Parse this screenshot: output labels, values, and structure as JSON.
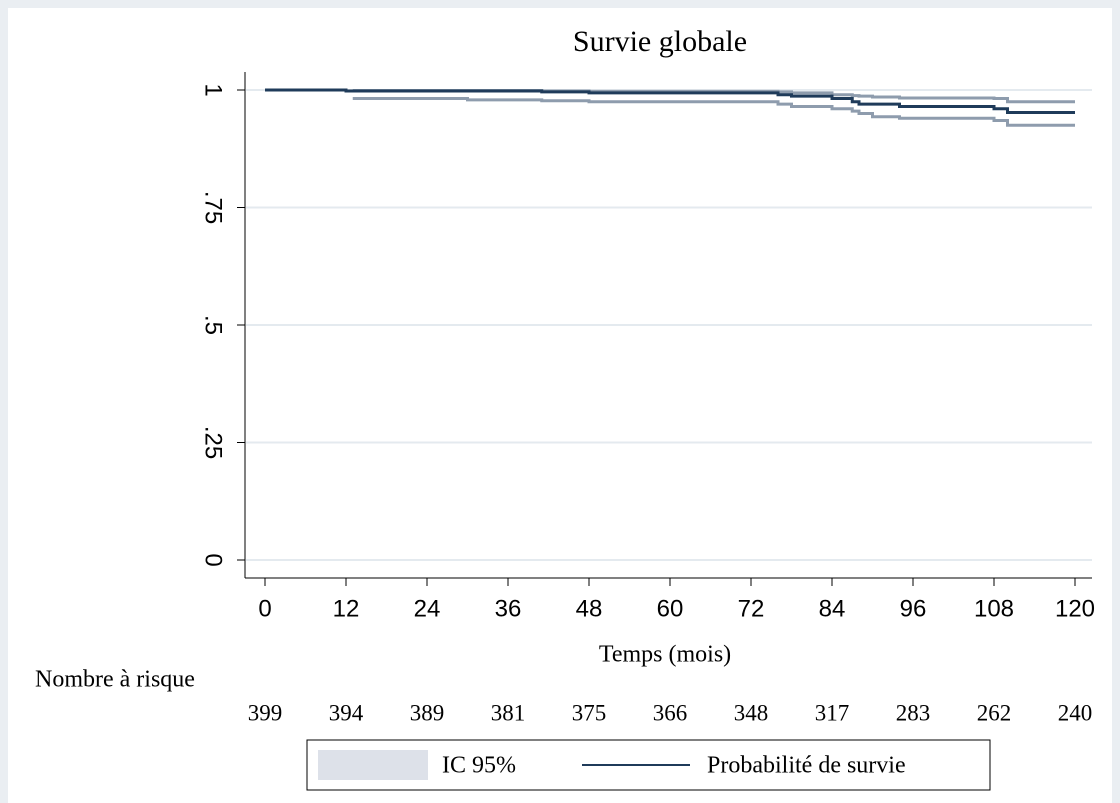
{
  "chart_data": {
    "type": "survival",
    "title": "Survie globale",
    "x_label": "Temps (mois)",
    "x": [
      0,
      12,
      13,
      30,
      41,
      48,
      76,
      78,
      84,
      87,
      88,
      90,
      94,
      108,
      110,
      120
    ],
    "series": [
      {
        "name": "Probabilité de survie",
        "color": "#1f3b5a",
        "values": [
          1,
          0.998,
          0.998,
          0.998,
          0.996,
          0.994,
          0.99,
          0.987,
          0.982,
          0.975,
          0.97,
          0.97,
          0.965,
          0.96,
          0.952,
          0.952
        ]
      }
    ],
    "ci": {
      "name": "IC 95%",
      "color": "#8e9cad",
      "legend_color": "#dde1e9",
      "lower": [
        null,
        null,
        0.982,
        0.979,
        0.977,
        0.975,
        0.97,
        0.965,
        0.96,
        0.955,
        0.95,
        0.943,
        0.94,
        0.935,
        0.925,
        0.925
      ],
      "upper": [
        null,
        null,
        0.999,
        0.999,
        0.998,
        0.997,
        0.996,
        0.994,
        0.99,
        0.988,
        0.987,
        0.985,
        0.983,
        0.982,
        0.975,
        0.975
      ]
    },
    "step": true,
    "xlim": [
      0,
      120
    ],
    "xticks": [
      0,
      12,
      24,
      36,
      48,
      60,
      72,
      84,
      96,
      108,
      120
    ],
    "ylim": [
      0,
      1
    ],
    "yticks": [
      0,
      {
        "value": 0.25,
        "label": ".25"
      },
      {
        "value": 0.5,
        "label": ".5"
      },
      {
        "value": 0.75,
        "label": ".75"
      },
      1
    ],
    "grid": true,
    "risk_table": {
      "label": "Nombre à risque",
      "values": [
        399,
        394,
        389,
        381,
        375,
        366,
        348,
        317,
        283,
        262,
        240
      ]
    }
  }
}
